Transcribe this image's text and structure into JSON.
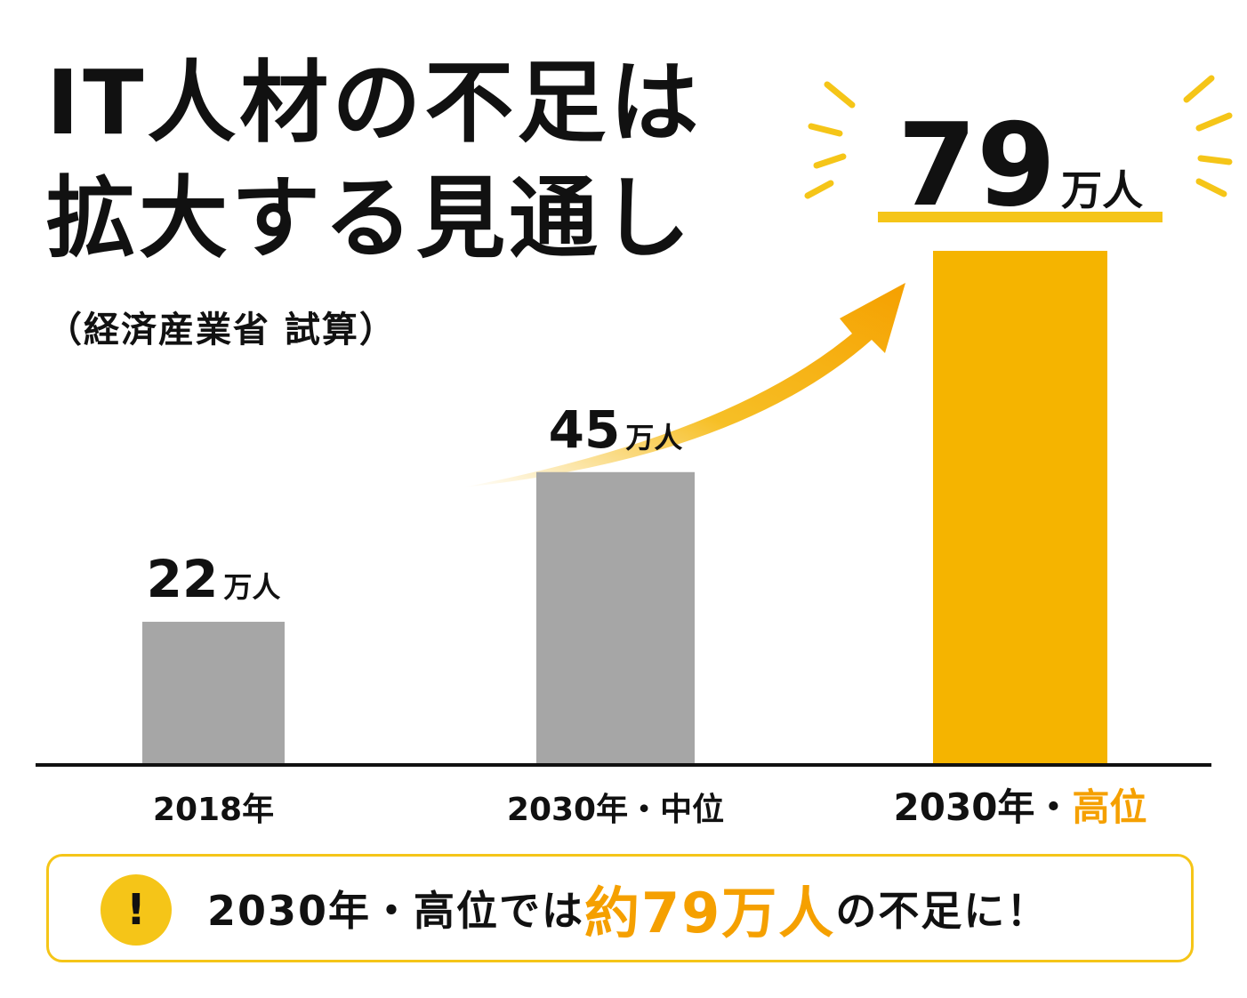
{
  "title": {
    "line1": "IT人材の不足は",
    "line2": "拡大する見通し"
  },
  "source": "（経済産業省 試算）",
  "colors": {
    "gray_bar": "#a6a6a6",
    "highlight_bar": "#f5b400",
    "accent": "#f5a000",
    "yellow": "#f5c518",
    "text": "#111111"
  },
  "chart_data": {
    "type": "bar",
    "categories": [
      "2018年",
      "2030年・中位",
      "2030年・高位"
    ],
    "category_parts": [
      {
        "main": "2018年",
        "accent": ""
      },
      {
        "main": "2030年・中位",
        "accent": ""
      },
      {
        "main": "2030年・",
        "accent": "高位"
      }
    ],
    "values": [
      22,
      45,
      79
    ],
    "unit": "万人",
    "value_labels": [
      "22",
      "45",
      "79"
    ],
    "highlight_index": 2,
    "ylim": [
      0,
      79
    ],
    "grid": false,
    "axis_line": true,
    "arrow": true
  },
  "callout": {
    "icon": "exclamation-icon",
    "icon_glyph": "!",
    "text_before": "2030年・高位では",
    "text_highlight": "約79万人",
    "text_after": "の不足に！"
  }
}
